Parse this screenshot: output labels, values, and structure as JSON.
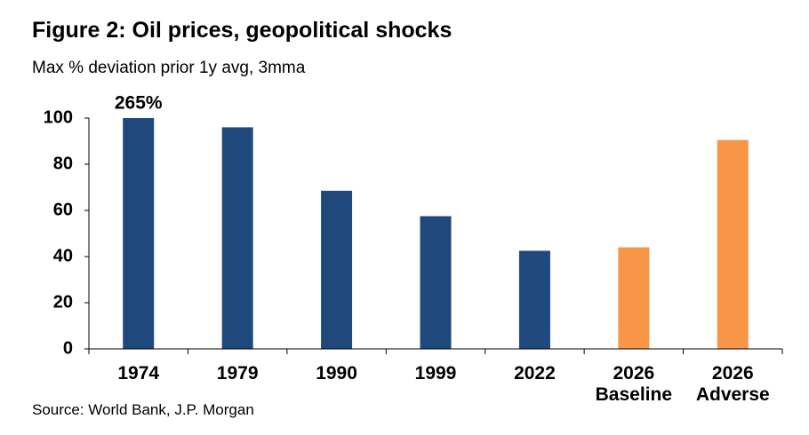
{
  "chart_data": {
    "type": "bar",
    "title": "Figure 2: Oil prices, geopolitical shocks",
    "subtitle": "Max % deviation prior 1y avg, 3mma",
    "source": "Source: World Bank, J.P. Morgan",
    "categories": [
      "1974",
      "1979",
      "1990",
      "1999",
      "2022",
      "2026\nBaseline",
      "2026\nAdverse"
    ],
    "values": [
      265,
      96,
      68.5,
      57.5,
      42.5,
      44,
      90.5
    ],
    "value_labels": [
      "265%",
      null,
      null,
      null,
      null,
      null,
      null
    ],
    "colors": [
      "#1f497d",
      "#1f497d",
      "#1f497d",
      "#1f497d",
      "#1f497d",
      "#f79646",
      "#f79646"
    ],
    "ylim": [
      0,
      100
    ],
    "yticks": [
      0,
      20,
      40,
      60,
      80,
      100
    ],
    "grid": false
  }
}
